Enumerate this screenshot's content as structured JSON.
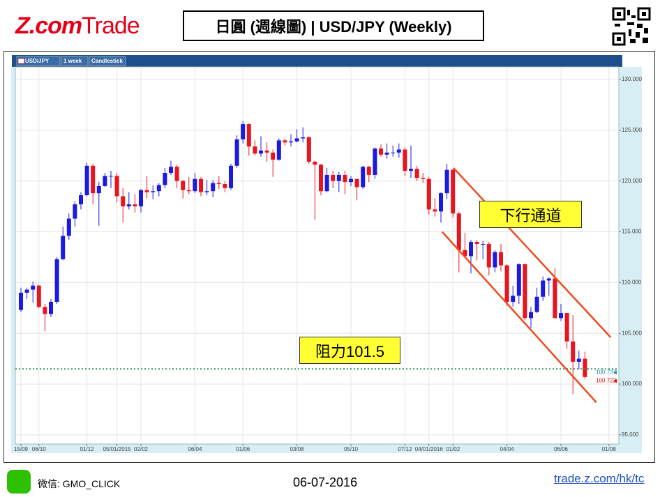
{
  "header": {
    "logo_brand": "Z.com",
    "logo_product": "Trade",
    "title": "日圓 (週線圖) | USD/JPY (Weekly)"
  },
  "footer": {
    "wechat": "微信: GMO_CLICK",
    "date": "06-07-2016",
    "url": "trade.z.com/hk/tc"
  },
  "chart_data": {
    "type": "candlestick",
    "toolbar": [
      "USD/JPY",
      "1 week",
      "Candlestick"
    ],
    "up_color": "#1a1ae0",
    "down_color": "#e8141e",
    "xlim": [
      -0.93,
      99.65
    ],
    "xticks": [
      {
        "value": 0,
        "label": "15/09"
      },
      {
        "value": 3,
        "label": "06/10"
      },
      {
        "value": 11,
        "label": "01/12"
      },
      {
        "value": 16,
        "label": "05/01/2015"
      },
      {
        "value": 20,
        "label": "02/02"
      },
      {
        "value": 29,
        "label": "06/04"
      },
      {
        "value": 37,
        "label": "01/06"
      },
      {
        "value": 46,
        "label": "03/08"
      },
      {
        "value": 55,
        "label": "05/10"
      },
      {
        "value": 64,
        "label": "07/12"
      },
      {
        "value": 68,
        "label": "04/01/2016"
      },
      {
        "value": 72,
        "label": "01/02"
      },
      {
        "value": 81,
        "label": "04/04"
      },
      {
        "value": 90,
        "label": "06/06"
      },
      {
        "value": 98,
        "label": "01/08"
      }
    ],
    "ylim": [
      94.1,
      130.96
    ],
    "yticks": [
      {
        "value": 95,
        "label": "95.000"
      },
      {
        "value": 100,
        "label": "100.000"
      },
      {
        "value": 105,
        "label": "105.000"
      },
      {
        "value": 110,
        "label": "110.000"
      },
      {
        "value": 115,
        "label": "115.000"
      },
      {
        "value": 120,
        "label": "120.000"
      },
      {
        "value": 125,
        "label": "125.000"
      },
      {
        "value": 130,
        "label": "130.000"
      }
    ],
    "grid": true,
    "open": [
      107.3,
      109.0,
      109.3,
      109.7,
      107.6,
      106.9,
      108.1,
      112.3,
      114.6,
      116.3,
      117.7,
      118.6,
      121.5,
      118.8,
      119.5,
      120.5,
      120.5,
      118.5,
      117.5,
      117.7,
      117.5,
      119.1,
      118.9,
      119.0,
      119.6,
      120.8,
      121.4,
      120.0,
      119.1,
      119.0,
      120.2,
      118.9,
      119.0,
      119.8,
      119.7,
      119.3,
      121.5,
      124.1,
      125.6,
      123.4,
      122.7,
      123.0,
      122.8,
      122.1,
      124.0,
      123.8,
      123.9,
      124.2,
      124.3,
      121.9,
      121.6,
      119.0,
      120.6,
      120.0,
      120.6,
      119.9,
      120.2,
      119.4,
      121.4,
      120.6,
      123.2,
      122.6,
      122.8,
      122.8,
      123.1,
      121.0,
      121.2,
      120.3,
      120.2,
      117.2,
      117.0,
      118.8,
      121.1,
      116.8,
      113.2,
      112.6,
      114.0,
      113.8,
      113.8,
      111.5,
      113.0,
      111.7,
      108.1,
      108.7,
      111.8,
      106.5,
      107.1,
      108.6,
      110.2,
      110.4,
      106.5,
      107.0,
      104.2,
      102.2,
      102.5
    ],
    "high": [
      109.5,
      109.5,
      110.1,
      109.8,
      107.9,
      108.4,
      112.5,
      115.5,
      116.8,
      118.0,
      118.9,
      121.8,
      121.7,
      119.9,
      120.8,
      121.0,
      120.8,
      119.3,
      118.9,
      118.7,
      119.2,
      120.5,
      119.6,
      119.8,
      121.3,
      122.0,
      121.6,
      120.1,
      120.4,
      120.8,
      120.4,
      120.1,
      120.1,
      120.5,
      120.0,
      121.7,
      124.5,
      125.9,
      125.7,
      124.0,
      124.4,
      123.8,
      123.1,
      124.2,
      124.2,
      124.6,
      125.1,
      125.3,
      124.4,
      122.0,
      121.7,
      121.3,
      121.0,
      120.9,
      121.0,
      120.5,
      120.2,
      121.5,
      121.5,
      123.3,
      123.6,
      123.7,
      123.5,
      123.7,
      123.3,
      123.5,
      121.5,
      120.8,
      120.4,
      118.3,
      118.9,
      121.7,
      121.2,
      117.0,
      114.9,
      114.2,
      114.2,
      114.1,
      114.0,
      113.2,
      113.8,
      111.8,
      109.7,
      111.9,
      111.9,
      107.6,
      109.5,
      110.6,
      110.5,
      111.4,
      107.9,
      107.0,
      106.8,
      103.3,
      103.2
    ],
    "low": [
      107.1,
      108.4,
      108.0,
      107.5,
      105.2,
      106.6,
      107.9,
      112.2,
      114.2,
      115.5,
      117.2,
      118.5,
      117.7,
      115.6,
      119.4,
      119.3,
      117.9,
      115.9,
      117.2,
      116.9,
      116.9,
      118.3,
      118.2,
      118.5,
      119.3,
      120.6,
      119.3,
      118.3,
      118.7,
      118.8,
      118.5,
      118.6,
      118.4,
      119.2,
      118.9,
      119.1,
      121.3,
      123.7,
      122.5,
      122.5,
      122.4,
      121.9,
      120.4,
      122.0,
      123.5,
      123.4,
      123.8,
      123.8,
      121.7,
      116.2,
      118.6,
      118.9,
      119.3,
      118.9,
      118.7,
      119.5,
      118.1,
      119.2,
      119.9,
      120.2,
      122.4,
      122.2,
      122.4,
      122.3,
      120.5,
      120.3,
      120.0,
      119.8,
      116.7,
      116.5,
      115.9,
      118.2,
      116.4,
      111.0,
      112.4,
      110.9,
      112.2,
      112.3,
      110.7,
      111.0,
      111.1,
      107.7,
      107.6,
      107.9,
      106.3,
      105.5,
      107.0,
      108.2,
      108.7,
      106.5,
      106.2,
      103.5,
      99.0,
      101.5,
      100.5
    ],
    "close": [
      109.0,
      109.3,
      109.7,
      107.6,
      106.9,
      108.1,
      112.3,
      114.6,
      116.3,
      117.7,
      118.6,
      121.5,
      118.8,
      119.5,
      120.5,
      120.5,
      118.5,
      117.5,
      117.7,
      117.5,
      119.1,
      118.9,
      119.0,
      119.6,
      120.8,
      121.4,
      120.0,
      119.1,
      119.0,
      120.2,
      118.9,
      119.0,
      119.8,
      119.7,
      119.3,
      121.5,
      124.1,
      125.6,
      123.4,
      122.7,
      123.0,
      122.8,
      122.1,
      124.0,
      123.8,
      123.9,
      124.2,
      124.3,
      121.9,
      121.6,
      119.0,
      120.6,
      120.0,
      120.6,
      119.9,
      120.2,
      119.4,
      121.4,
      120.6,
      123.2,
      122.6,
      122.8,
      122.8,
      123.1,
      121.0,
      121.2,
      120.3,
      120.2,
      117.2,
      117.0,
      118.8,
      121.1,
      116.8,
      113.2,
      112.6,
      114.0,
      113.8,
      113.8,
      111.5,
      113.0,
      111.7,
      108.1,
      108.7,
      111.8,
      106.5,
      107.1,
      108.6,
      110.2,
      110.4,
      106.5,
      107.0,
      104.2,
      102.2,
      102.5,
      100.7
    ],
    "channel_color": "#f04a1e",
    "channel": [
      {
        "x": [
          72.1,
          98.3
        ],
        "y": [
          121.28,
          104.6
        ]
      },
      {
        "x": [
          70.2,
          95.9
        ],
        "y": [
          115.0,
          98.2
        ]
      }
    ],
    "resistance": {
      "value": 101.5,
      "color": "#2a9a4a",
      "label": "阻力101.5"
    },
    "channel_label": "下行通道",
    "price_tags": [
      {
        "value": 100.737,
        "label": "100.737",
        "color": "#1e90c8"
      },
      {
        "value": 100.722,
        "label": "100.722",
        "color": "#e01010"
      }
    ]
  }
}
